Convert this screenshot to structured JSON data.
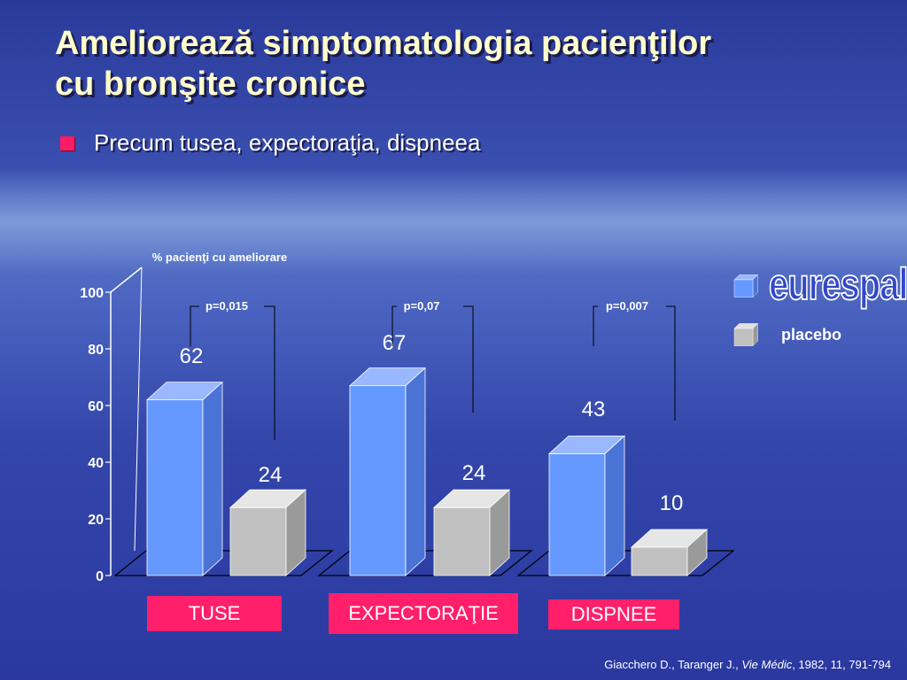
{
  "slide": {
    "title_line1": "Ameliorează simptomatologia pacienţilor",
    "title_line2": "cu bronşite cronice",
    "bullet": "Precum tusea, expectoraţia, dispneea",
    "source_authors": "Giacchero D., Taranger J., ",
    "source_journal": "Vie Médic",
    "source_rest": ", 1982, 11, 791-794"
  },
  "legend": {
    "drug": "eurespal",
    "drug_mark": "®",
    "placebo": "placebo"
  },
  "colors": {
    "drug": "#6699ff",
    "placebo": "#c0c0c0",
    "category_box": "#ff1f6a",
    "bullet": "#ff1a66"
  },
  "chart_data": {
    "type": "bar",
    "ylabel": "% pacienţi cu ameliorare",
    "ylim": [
      0,
      100
    ],
    "yticks": [
      0,
      20,
      40,
      60,
      80,
      100
    ],
    "categories": [
      "TUSE",
      "EXPECTORAŢIE",
      "DISPNEE"
    ],
    "series": [
      {
        "name": "eurespal",
        "values": [
          62,
          67,
          43
        ]
      },
      {
        "name": "placebo",
        "values": [
          24,
          24,
          10
        ]
      }
    ],
    "annotations": [
      "p=0,015",
      "p=0,07",
      "p=0,007"
    ]
  }
}
